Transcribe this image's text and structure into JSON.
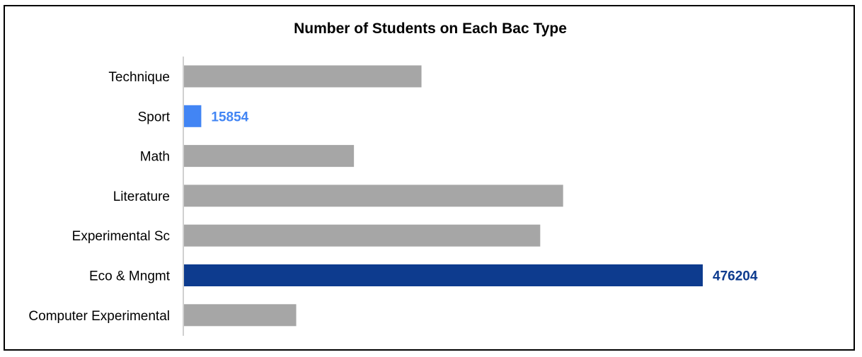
{
  "chart_data": {
    "type": "bar",
    "orientation": "horizontal",
    "title": "Number of Students on Each Bac Type",
    "categories": [
      "Technique",
      "Sport",
      "Math",
      "Literature",
      "Experimental Sc",
      "Eco & Mngmt",
      "Computer Experimental"
    ],
    "values": [
      218000,
      15854,
      156000,
      348000,
      327000,
      476204,
      103000
    ],
    "data_labels": [
      "",
      "15854",
      "",
      "",
      "",
      "476204",
      ""
    ],
    "colors": {
      "default": "#a6a6a6",
      "Sport": "#4285f4",
      "Eco & Mngmt": "#0d3b8e"
    },
    "xlim": [
      0,
      476204
    ],
    "grid": false,
    "legend": "none"
  }
}
